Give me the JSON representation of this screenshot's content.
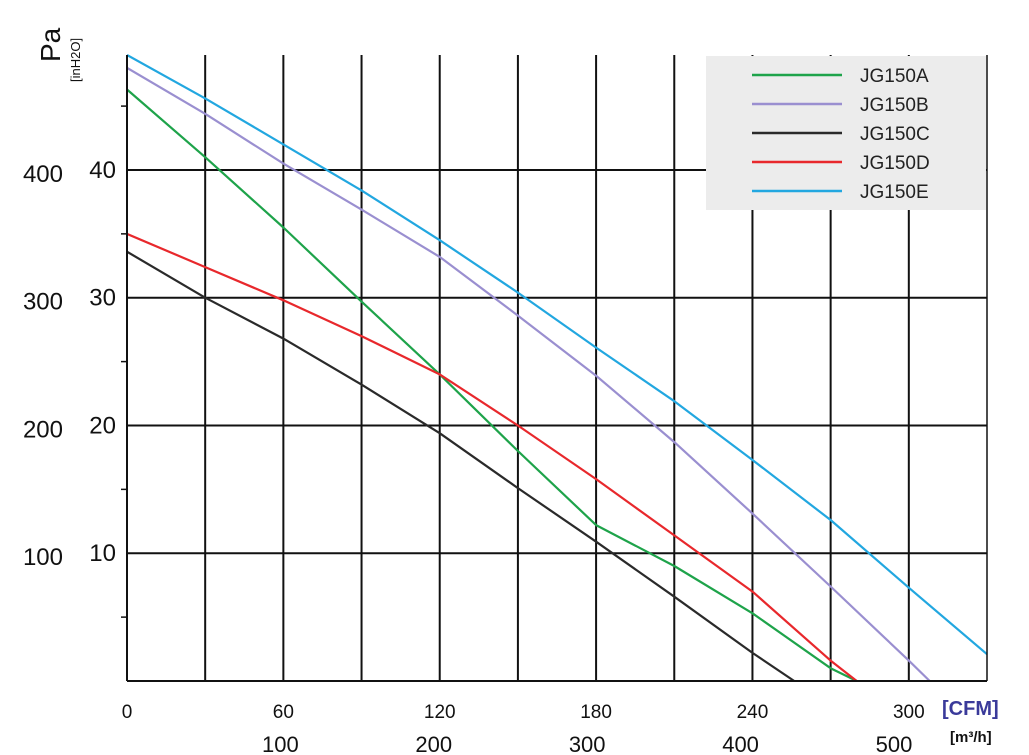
{
  "chart_data": {
    "type": "line",
    "title": "",
    "ylabel": "Pa",
    "ylabel_secondary": "[inH2O]",
    "xlabel": "[CFM]",
    "xlabel_secondary": "[m³/h]",
    "xlim": [
      0,
      330
    ],
    "ylim": [
      0,
      49
    ],
    "x_ticks_cfm": [
      "0",
      "60",
      "120",
      "180",
      "240",
      "300"
    ],
    "x_ticks_cfm_values": [
      0,
      60,
      120,
      180,
      240,
      300
    ],
    "x_ticks_m3h": [
      "100",
      "200",
      "300",
      "400",
      "500"
    ],
    "x_ticks_m3h_values": [
      58.86,
      117.72,
      176.58,
      235.44,
      294.3
    ],
    "y_ticks_inh2o": [
      "10",
      "20",
      "30",
      "40"
    ],
    "y_ticks_inh2o_values": [
      10,
      20,
      30,
      40
    ],
    "y_ticks_pa": [
      "100",
      "200",
      "300",
      "400"
    ],
    "y_ticks_pa_values": [
      10,
      20,
      30,
      40
    ],
    "grid": true,
    "legend_position": "top-right",
    "series": [
      {
        "name": "JG150A",
        "color": "#1ea34a",
        "points": [
          [
            0,
            46.3
          ],
          [
            30,
            41
          ],
          [
            60,
            35.5
          ],
          [
            90,
            29.7
          ],
          [
            120,
            24
          ],
          [
            150,
            18
          ],
          [
            180,
            12.2
          ],
          [
            210,
            9
          ],
          [
            240,
            5.3
          ],
          [
            270,
            1
          ],
          [
            280,
            0
          ]
        ]
      },
      {
        "name": "JG150B",
        "color": "#9a8fd0",
        "points": [
          [
            0,
            48
          ],
          [
            30,
            44.4
          ],
          [
            60,
            40.5
          ],
          [
            90,
            36.9
          ],
          [
            120,
            33.2
          ],
          [
            150,
            28.6
          ],
          [
            180,
            23.9
          ],
          [
            210,
            18.7
          ],
          [
            240,
            13.1
          ],
          [
            270,
            7.4
          ],
          [
            300,
            1.6
          ],
          [
            308,
            0
          ]
        ]
      },
      {
        "name": "JG150C",
        "color": "#2a2a2a",
        "points": [
          [
            0,
            33.6
          ],
          [
            30,
            30
          ],
          [
            60,
            26.8
          ],
          [
            90,
            23.2
          ],
          [
            120,
            19.4
          ],
          [
            150,
            15.1
          ],
          [
            180,
            10.9
          ],
          [
            210,
            6.6
          ],
          [
            240,
            2.2
          ],
          [
            256,
            0
          ]
        ]
      },
      {
        "name": "JG150D",
        "color": "#e8282c",
        "points": [
          [
            0,
            35
          ],
          [
            30,
            32.4
          ],
          [
            60,
            29.8
          ],
          [
            90,
            27
          ],
          [
            120,
            24
          ],
          [
            150,
            20
          ],
          [
            180,
            15.8
          ],
          [
            210,
            11.4
          ],
          [
            240,
            7
          ],
          [
            270,
            1.6
          ],
          [
            280,
            0
          ]
        ]
      },
      {
        "name": "JG150E",
        "color": "#22a7e0",
        "points": [
          [
            0,
            49
          ],
          [
            30,
            45.6
          ],
          [
            60,
            42
          ],
          [
            90,
            38.4
          ],
          [
            120,
            34.5
          ],
          [
            150,
            30.4
          ],
          [
            180,
            26.1
          ],
          [
            210,
            21.9
          ],
          [
            240,
            17.3
          ],
          [
            270,
            12.6
          ],
          [
            300,
            7.3
          ],
          [
            330,
            2.1
          ]
        ]
      }
    ]
  }
}
